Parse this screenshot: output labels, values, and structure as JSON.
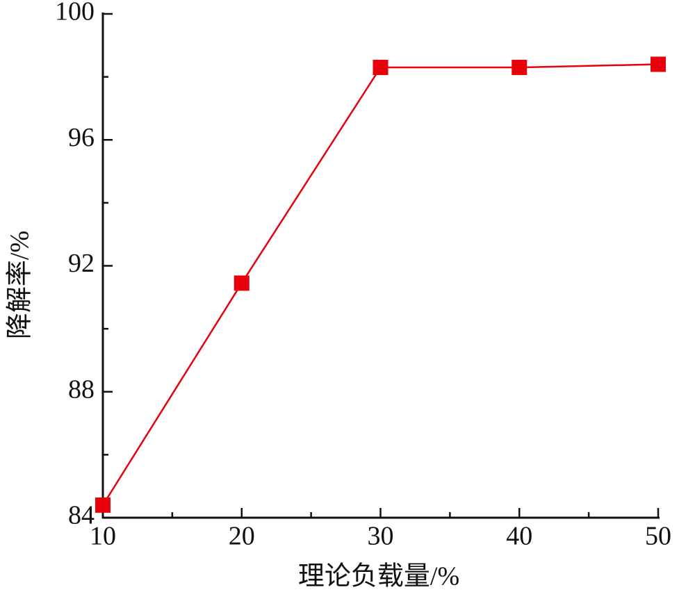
{
  "chart_data": {
    "type": "line",
    "x_label": "理论负载量/%",
    "y_label": "降解率/%",
    "x": [
      10,
      20,
      30,
      40,
      50
    ],
    "series": [
      {
        "color": "#e8000b",
        "values": [
          84.4,
          91.45,
          98.3,
          98.3,
          98.4
        ]
      }
    ],
    "xlim": [
      10,
      50
    ],
    "xticks": [
      10,
      20,
      30,
      40,
      50
    ],
    "ylim": [
      84,
      100
    ],
    "yticks": [
      84,
      88,
      92,
      96,
      100
    ],
    "grid": false,
    "marker": "square"
  }
}
